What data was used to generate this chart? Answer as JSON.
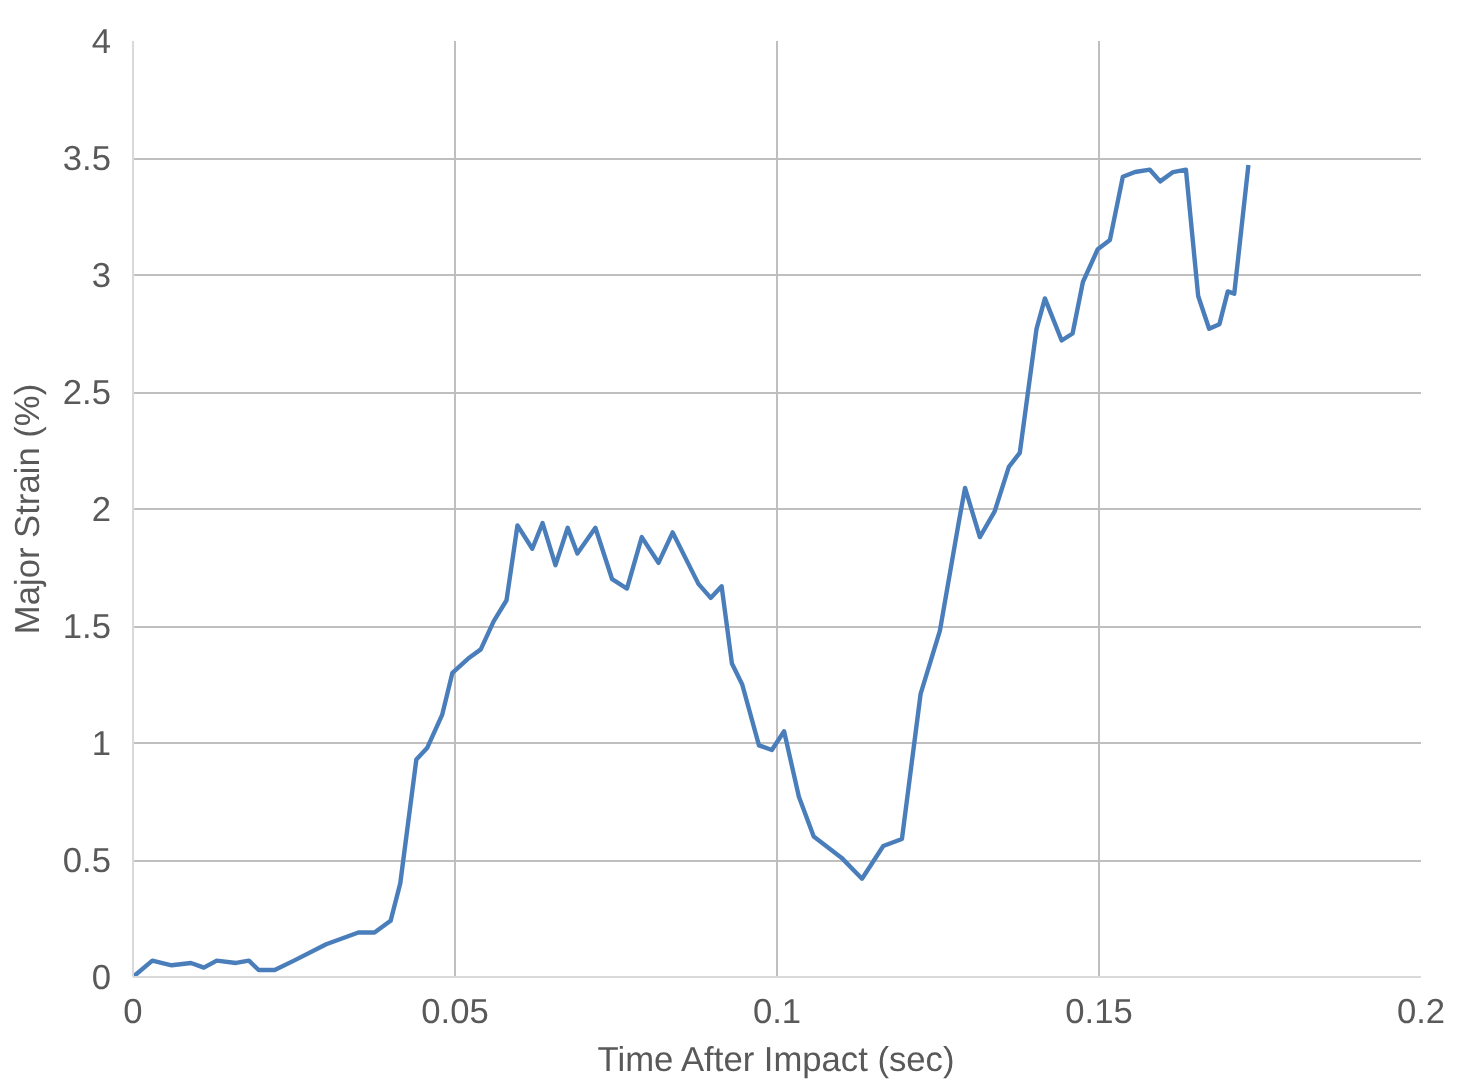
{
  "chart_data": {
    "type": "line",
    "xlabel": "Time After Impact (sec)",
    "ylabel": "Major Strain (%)",
    "xlim": [
      0,
      0.2
    ],
    "ylim": [
      0,
      4
    ],
    "xticks": [
      0,
      0.05,
      0.1,
      0.15,
      0.2
    ],
    "yticks": [
      0,
      0.5,
      1,
      1.5,
      2,
      2.5,
      3,
      3.5,
      4
    ],
    "grid": true,
    "marker": "none",
    "line_style": "solid",
    "series": [
      {
        "color": "#4a7ebb",
        "x": [
          0,
          0.003,
          0.006,
          0.009,
          0.011,
          0.013,
          0.016,
          0.018,
          0.0195,
          0.022,
          0.025,
          0.03,
          0.035,
          0.0375,
          0.04,
          0.0415,
          0.044,
          0.0457,
          0.048,
          0.0496,
          0.052,
          0.054,
          0.056,
          0.058,
          0.0597,
          0.062,
          0.0636,
          0.0656,
          0.0675,
          0.069,
          0.0718,
          0.0744,
          0.0767,
          0.079,
          0.0816,
          0.0838,
          0.0878,
          0.0897,
          0.0914,
          0.093,
          0.0946,
          0.0972,
          0.0992,
          0.1011,
          0.1034,
          0.1057,
          0.11,
          0.1132,
          0.1165,
          0.1194,
          0.1223,
          0.1253,
          0.1282,
          0.1292,
          0.1315,
          0.1338,
          0.136,
          0.1377,
          0.1403,
          0.1416,
          0.1442,
          0.1459,
          0.1475,
          0.1498,
          0.1517,
          0.1537,
          0.1556,
          0.1579,
          0.1595,
          0.1615,
          0.1635,
          0.1654,
          0.1671,
          0.1687,
          0.17,
          0.171,
          0.1732
        ],
        "values": [
          0,
          0.07,
          0.05,
          0.06,
          0.04,
          0.07,
          0.06,
          0.07,
          0.03,
          0.03,
          0.07,
          0.14,
          0.19,
          0.19,
          0.24,
          0.4,
          0.93,
          0.98,
          1.12,
          1.3,
          1.36,
          1.4,
          1.52,
          1.61,
          1.93,
          1.83,
          1.94,
          1.76,
          1.92,
          1.81,
          1.92,
          1.7,
          1.66,
          1.88,
          1.77,
          1.9,
          1.68,
          1.62,
          1.67,
          1.34,
          1.25,
          0.99,
          0.97,
          1.05,
          0.77,
          0.6,
          0.51,
          0.42,
          0.56,
          0.59,
          1.21,
          1.48,
          1.94,
          2.09,
          1.88,
          1.99,
          2.18,
          2.24,
          2.77,
          2.9,
          2.72,
          2.75,
          2.97,
          3.11,
          3.15,
          3.42,
          3.44,
          3.45,
          3.4,
          3.44,
          3.45,
          2.91,
          2.77,
          2.79,
          2.93,
          2.92,
          3.47
        ]
      }
    ]
  }
}
